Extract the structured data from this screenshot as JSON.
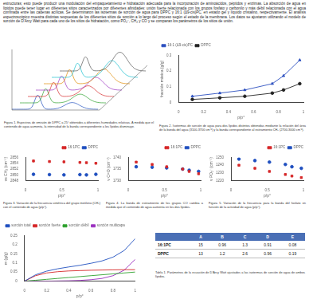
{
  "intro": "estructuras; esto puede producir una modulación del empaquetamiento e hidratación adecuada para la incorporación de aminoácidos, péptidos y enzimas. La absorción de agua en lípidos puede tener lugar en diferentes sitios caracterizados por diferentes afinidades: unión fuerte relacionada con los grupos fosfato y carbonilo y más débil relacionada con el agua confinada entre las cadenas acílicas. Se determinaron las isotermas de sorción de agua para DPPC y 16:1 (Δ9-cis)PC, en estado gel y líquido cristalino, respectivamente. El análisis espectroscópico muestra distintas respuestas de los diferentes sitios de sorción a lo largo del proceso según el estado de la membrana. Los datos se ajustaron utilizando el modelo de sorción de D'Arcy Watt para cada uno de los sitios de hidratación, como PO₂⁻, CH₂ y CO y se comparan los parámetros de los sitios de unión.",
  "figure1_caption": "Figura 1. Espectros de emisión de DPPC a 25° obtenidos a diferentes humedades relativas. A medida que el contenido de agua aumenta, la intensidad de la banda correspondiente a los lípidos disminuye.",
  "chart_data": [
    {
      "type": "scatter",
      "caption": "Figura 2. Isotermas de sorción de agua para dos lípidos distintos obtenidas mediante la relación del área de la banda del agua (3100-3700 cm⁻¹) y la banda correspondiente al estiramiento CH₂ (2700-3000 cm⁻¹).",
      "x_label": "p/p°",
      "y_label": "fracción másica (g/g)",
      "xlim": [
        0,
        1
      ],
      "xticks": [
        0,
        0.2,
        0.4,
        0.6,
        0.8,
        1
      ],
      "ylim": [
        0,
        0.3
      ],
      "yticks": [
        0,
        0.1,
        0.2,
        0.3
      ],
      "legend": "top-left",
      "series": [
        {
          "name": "16:1 (Δ9-cis)PC",
          "color": "#2b4fbf",
          "marker": "triangle",
          "line_style": "solid",
          "x": [
            0.11,
            0.33,
            0.53,
            0.75,
            0.84,
            0.97
          ],
          "values": [
            0.04,
            0.06,
            0.08,
            0.12,
            0.17,
            0.27
          ]
        },
        {
          "name": "DPPC",
          "color": "#222222",
          "marker": "circle",
          "line_style": "solid",
          "x": [
            0.11,
            0.33,
            0.53,
            0.75,
            0.84,
            0.97
          ],
          "values": [
            0.02,
            0.03,
            0.04,
            0.06,
            0.08,
            0.12
          ]
        }
      ]
    },
    {
      "type": "scatter",
      "caption": "Figura 3. Variación de la frecuencia simétrica del grupo metileno (CH₂) con el contenido de agua (p/p°).",
      "x_label": "p/p°",
      "y_label": "νs CH₂ (cm⁻¹)",
      "xlim": [
        0,
        1
      ],
      "xticks": [
        0,
        0.5,
        1
      ],
      "ylim": [
        2848,
        2856
      ],
      "yticks": [
        2848,
        2850,
        2852,
        2854,
        2856
      ],
      "legend": "top-right",
      "series": [
        {
          "name": "16:1PC",
          "color": "#d62728",
          "marker": "square",
          "line_style": "none",
          "x": [
            0.11,
            0.33,
            0.53,
            0.75,
            0.84,
            0.97
          ],
          "values": [
            2854.8,
            2854.6,
            2854.5,
            2854.3,
            2854.2,
            2854.0
          ]
        },
        {
          "name": "DPPC",
          "color": "#1f4fbf",
          "marker": "circle",
          "line_style": "none",
          "x": [
            0.11,
            0.33,
            0.53,
            0.75,
            0.84,
            0.97
          ],
          "values": [
            2850.2,
            2850.1,
            2850.0,
            2850.1,
            2850.0,
            2850.2
          ]
        }
      ]
    },
    {
      "type": "scatter",
      "caption": "Figura 4. La banda de estiramiento de los grupos CO cambia a medida que el contenido de agua aumenta en los dos lípidos.",
      "x_label": "p/p°",
      "y_label": "ν C=O (cm⁻¹)",
      "xlim": [
        0,
        1
      ],
      "xticks": [
        0,
        0.5,
        1
      ],
      "ylim": [
        1730,
        1740
      ],
      "yticks": [
        1730,
        1735,
        1740
      ],
      "legend": "top-right",
      "series": [
        {
          "name": "16:1PC",
          "color": "#d62728",
          "marker": "square",
          "line_style": "none",
          "x": [
            0.11,
            0.33,
            0.53,
            0.75,
            0.84,
            0.97
          ],
          "values": [
            1738,
            1737,
            1736,
            1735,
            1734,
            1733
          ]
        },
        {
          "name": "DPPC",
          "color": "#1f4fbf",
          "marker": "circle",
          "line_style": "none",
          "x": [
            0.11,
            0.33,
            0.53,
            0.75,
            0.84,
            0.97
          ],
          "values": [
            1736,
            1735.8,
            1735.5,
            1735,
            1734.5,
            1734
          ]
        }
      ]
    },
    {
      "type": "scatter",
      "caption": "Figura 5. Variación de la frecuencia para la banda del fosfato en función de la actividad de agua (p/p°).",
      "x_label": "p/p°",
      "y_label": "ν PO₂⁻ (cm⁻¹)",
      "xlim": [
        0,
        1
      ],
      "xticks": [
        0,
        0.5,
        1
      ],
      "ylim": [
        1220,
        1250
      ],
      "yticks": [
        1220,
        1230,
        1240,
        1250
      ],
      "legend": "top-right",
      "series": [
        {
          "name": "16:1PC",
          "color": "#d62728",
          "marker": "square",
          "line_style": "none",
          "x": [
            0.11,
            0.33,
            0.53,
            0.75,
            0.84,
            0.97
          ],
          "values": [
            1240,
            1236,
            1232,
            1228,
            1226,
            1224
          ]
        },
        {
          "name": "DPPC",
          "color": "#1f4fbf",
          "marker": "circle",
          "line_style": "none",
          "x": [
            0.11,
            0.33,
            0.53,
            0.75,
            0.84,
            0.97
          ],
          "values": [
            1248,
            1246,
            1244,
            1241,
            1238,
            1236
          ]
        }
      ]
    },
    {
      "type": "line",
      "x_label": "p/p°",
      "y_label": "m (g/g)",
      "xlim": [
        0,
        1
      ],
      "xticks": [
        0,
        0.2,
        0.4,
        0.6,
        0.8,
        1
      ],
      "ylim": [
        0,
        0.25
      ],
      "yticks": [
        0,
        0.05,
        0.1,
        0.15,
        0.2,
        0.25
      ],
      "legend": "top-left",
      "series": [
        {
          "name": "sorción total",
          "color": "#1f4fbf",
          "marker": "none",
          "line_style": "solid",
          "x": [
            0,
            0.1,
            0.2,
            0.3,
            0.4,
            0.5,
            0.6,
            0.7,
            0.8,
            0.9,
            1
          ],
          "values": [
            0,
            0.035,
            0.055,
            0.068,
            0.078,
            0.087,
            0.098,
            0.111,
            0.132,
            0.168,
            0.233
          ]
        },
        {
          "name": "sorción fuerte",
          "color": "#d62728",
          "marker": "none",
          "line_style": "solid",
          "x": [
            0,
            0.1,
            0.2,
            0.3,
            0.4,
            0.5,
            0.6,
            0.7,
            0.8,
            0.9,
            1
          ],
          "values": [
            0,
            0.03,
            0.045,
            0.052,
            0.056,
            0.058,
            0.06,
            0.061,
            0.062,
            0.063,
            0.063
          ]
        },
        {
          "name": "sorción débil",
          "color": "#2ca02c",
          "marker": "none",
          "line_style": "solid",
          "x": [
            0,
            0.1,
            0.2,
            0.3,
            0.4,
            0.5,
            0.6,
            0.7,
            0.8,
            0.9,
            1
          ],
          "values": [
            0,
            0.005,
            0.01,
            0.015,
            0.02,
            0.025,
            0.03,
            0.035,
            0.04,
            0.045,
            0.05
          ]
        },
        {
          "name": "sorción multicapa",
          "color": "#9b30c0",
          "marker": "none",
          "line_style": "solid",
          "x": [
            0,
            0.1,
            0.2,
            0.3,
            0.4,
            0.5,
            0.6,
            0.7,
            0.8,
            0.9,
            1
          ],
          "values": [
            0,
            0,
            0,
            0.001,
            0.002,
            0.004,
            0.008,
            0.015,
            0.03,
            0.06,
            0.12
          ]
        }
      ]
    }
  ],
  "table": {
    "header": [
      "",
      "A",
      "B",
      "C",
      "D",
      "E"
    ],
    "rows": [
      [
        "16:1PC",
        "15",
        "0.96",
        "1.3",
        "0.91",
        "0.08"
      ],
      [
        "DPPC",
        "13",
        "1.2",
        "2.6",
        "0.96",
        "0.19"
      ]
    ],
    "caption": "Tabla 1. Parámetros de la ecuación de D'Arcy Watt ajustados a las isotermas de sorción de agua de ambos lípidos."
  }
}
